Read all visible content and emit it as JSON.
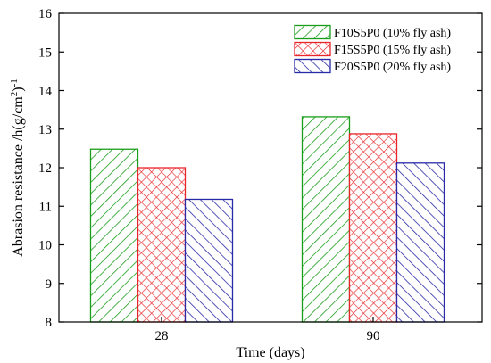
{
  "chart_data": {
    "type": "bar",
    "categories": [
      "28",
      "90"
    ],
    "series": [
      {
        "name": "F10S5P0 (10% fly ash)",
        "values": [
          12.48,
          13.32
        ],
        "color": "#1a9e1a",
        "hatch": "diagonal-up"
      },
      {
        "name": "F15S5P0 (15% fly ash)",
        "values": [
          12.0,
          12.88
        ],
        "color": "#e8262a",
        "hatch": "crosshatch"
      },
      {
        "name": "F20S5P0 (20% fly ash)",
        "values": [
          11.18,
          12.12
        ],
        "color": "#2a2aa8",
        "hatch": "diagonal-down"
      }
    ],
    "xlabel": "Time (days)",
    "ylabel_main": "Abrasion resistance /h(g/cm",
    "ylabel_sup1": "2",
    "ylabel_mid": ")",
    "ylabel_sup2": "-1",
    "ylim": [
      8,
      16
    ],
    "yticks": [
      "8",
      "9",
      "10",
      "11",
      "12",
      "13",
      "14",
      "15",
      "16"
    ],
    "grid": false,
    "legend_position": "top-right"
  }
}
